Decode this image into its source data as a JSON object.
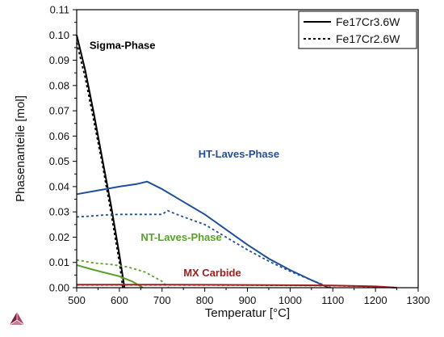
{
  "chart_data": {
    "type": "line",
    "title": "",
    "xlabel": "Temperatur [°C]",
    "ylabel": "Phasenanteile [mol]",
    "xlim": [
      500,
      1300
    ],
    "ylim": [
      0,
      0.11
    ],
    "xticks": [
      500,
      600,
      700,
      800,
      900,
      1000,
      1100,
      1200,
      1300
    ],
    "yticks": [
      0.0,
      0.01,
      0.02,
      0.03,
      0.04,
      0.05,
      0.06,
      0.07,
      0.08,
      0.09,
      0.1,
      0.11
    ],
    "ytick_labels": [
      "0.00",
      "0.01",
      "0.02",
      "0.03",
      "0.04",
      "0.05",
      "0.06",
      "0.07",
      "0.08",
      "0.09",
      "0.10",
      "0.11"
    ],
    "grid": false,
    "legend": {
      "position": "top-right",
      "entries": [
        {
          "label": "Fe17Cr3.6W",
          "style": "solid"
        },
        {
          "label": "Fe17Cr2.6W",
          "style": "dotted"
        }
      ]
    },
    "series": [
      {
        "phase": "Sigma-Phase",
        "alloy": "Fe17Cr3.6W",
        "style": "solid",
        "color": "#000000",
        "x": [
          500,
          520,
          540,
          560,
          580,
          600,
          612
        ],
        "y": [
          0.1,
          0.086,
          0.069,
          0.051,
          0.033,
          0.013,
          0.0
        ]
      },
      {
        "phase": "Sigma-Phase",
        "alloy": "Fe17Cr2.6W",
        "style": "dotted",
        "color": "#000000",
        "x": [
          500,
          520,
          540,
          560,
          580,
          600,
          608
        ],
        "y": [
          0.097,
          0.083,
          0.066,
          0.049,
          0.03,
          0.01,
          0.0
        ]
      },
      {
        "phase": "HT-Laves-Phase",
        "alloy": "Fe17Cr3.6W",
        "style": "solid",
        "color": "#1f4e9a",
        "x": [
          500,
          550,
          600,
          640,
          665,
          700,
          750,
          800,
          850,
          900,
          950,
          1000,
          1050,
          1090
        ],
        "y": [
          0.037,
          0.0385,
          0.04,
          0.041,
          0.042,
          0.039,
          0.034,
          0.029,
          0.023,
          0.017,
          0.0115,
          0.007,
          0.003,
          0.0
        ]
      },
      {
        "phase": "HT-Laves-Phase",
        "alloy": "Fe17Cr2.6W",
        "style": "dotted",
        "color": "#1f4e9a",
        "x": [
          500,
          530,
          560,
          600,
          650,
          700,
          713,
          720,
          750,
          800,
          850,
          900,
          950,
          1000,
          1050,
          1095
        ],
        "y": [
          0.028,
          0.0283,
          0.0287,
          0.029,
          0.029,
          0.029,
          0.0305,
          0.03,
          0.028,
          0.025,
          0.02,
          0.015,
          0.0105,
          0.0065,
          0.003,
          0.0
        ]
      },
      {
        "phase": "NT-Laves-Phase",
        "alloy": "Fe17Cr3.6W",
        "style": "solid",
        "color": "#5aa02c",
        "x": [
          500,
          530,
          560,
          600,
          630,
          655
        ],
        "y": [
          0.009,
          0.0075,
          0.0062,
          0.0045,
          0.0025,
          0.0
        ]
      },
      {
        "phase": "NT-Laves-Phase",
        "alloy": "Fe17Cr2.6W",
        "style": "dotted",
        "color": "#5aa02c",
        "x": [
          500,
          540,
          580,
          620,
          660,
          700,
          715
        ],
        "y": [
          0.011,
          0.0098,
          0.0092,
          0.0082,
          0.0062,
          0.0025,
          0.0
        ]
      },
      {
        "phase": "MX Carbide",
        "alloy": "Fe17Cr3.6W",
        "style": "solid",
        "color": "#a02020",
        "x": [
          500,
          700,
          900,
          1100,
          1200,
          1250
        ],
        "y": [
          0.0012,
          0.0012,
          0.0011,
          0.0009,
          0.0005,
          0.0
        ]
      },
      {
        "phase": "MX Carbide",
        "alloy": "Fe17Cr2.6W",
        "style": "dotted",
        "color": "#a02020",
        "x": [
          500,
          700,
          900,
          1100,
          1200,
          1250
        ],
        "y": [
          0.0011,
          0.0011,
          0.001,
          0.0008,
          0.0004,
          0.0
        ]
      }
    ],
    "annotations": [
      {
        "text": "Sigma-Phase",
        "x": 530,
        "y": 0.0945,
        "color": "#000000"
      },
      {
        "text": "HT-Laves-Phase",
        "x": 785,
        "y": 0.0515,
        "color": "#1f4e9a"
      },
      {
        "text": "NT-Laves-Phase",
        "x": 650,
        "y": 0.0185,
        "color": "#5aa02c"
      },
      {
        "text": "MX Carbide",
        "x": 750,
        "y": 0.0045,
        "color": "#a02020"
      }
    ]
  }
}
